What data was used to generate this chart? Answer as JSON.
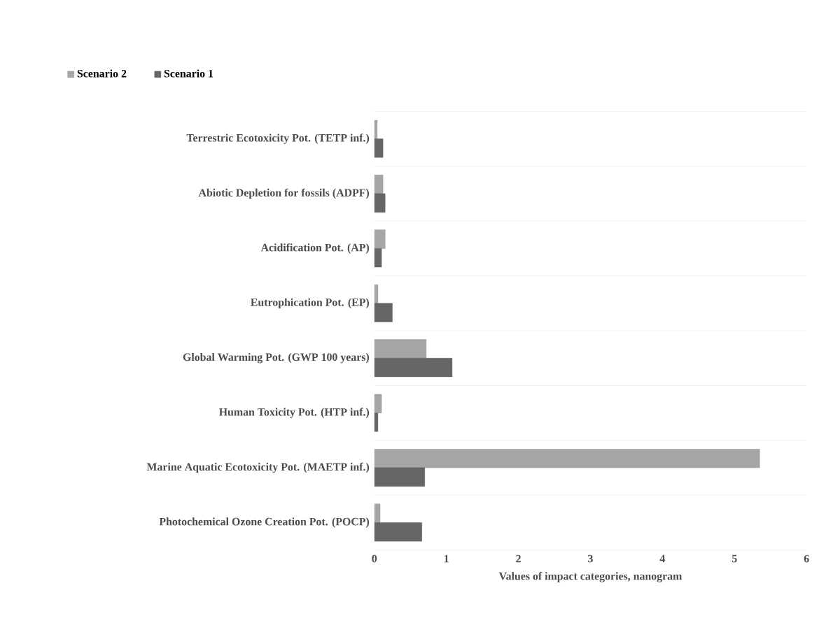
{
  "chart_data": {
    "type": "bar",
    "orientation": "horizontal",
    "xlabel": "Values of impact categories, nanogram",
    "categories": [
      "Terrestric Ecotoxicity Pot. (TETP inf.)",
      "Abiotic Depletion for fossils (ADPF)",
      "Acidification Pot. (AP)",
      "Eutrophication Pot. (EP)",
      "Global Warming Pot. (GWP 100 years)",
      "Human Toxicity Pot. (HTP inf.)",
      "Marine Aquatic Ecotoxicity Pot. (MAETP inf.)",
      "Photochemical Ozone Creation Pot. (POCP)"
    ],
    "series": [
      {
        "name": "Scenario 2",
        "color": "#a6a6a6",
        "values": [
          0.04,
          0.12,
          0.15,
          0.05,
          0.72,
          0.1,
          5.35,
          0.08
        ]
      },
      {
        "name": "Scenario 1",
        "color": "#666666",
        "values": [
          0.12,
          0.15,
          0.1,
          0.25,
          1.08,
          0.05,
          0.7,
          0.66
        ]
      }
    ],
    "xlim": [
      0,
      6
    ],
    "xticks": [
      0,
      1,
      2,
      3,
      4,
      5,
      6
    ],
    "grid": "y",
    "legend": "top left"
  }
}
